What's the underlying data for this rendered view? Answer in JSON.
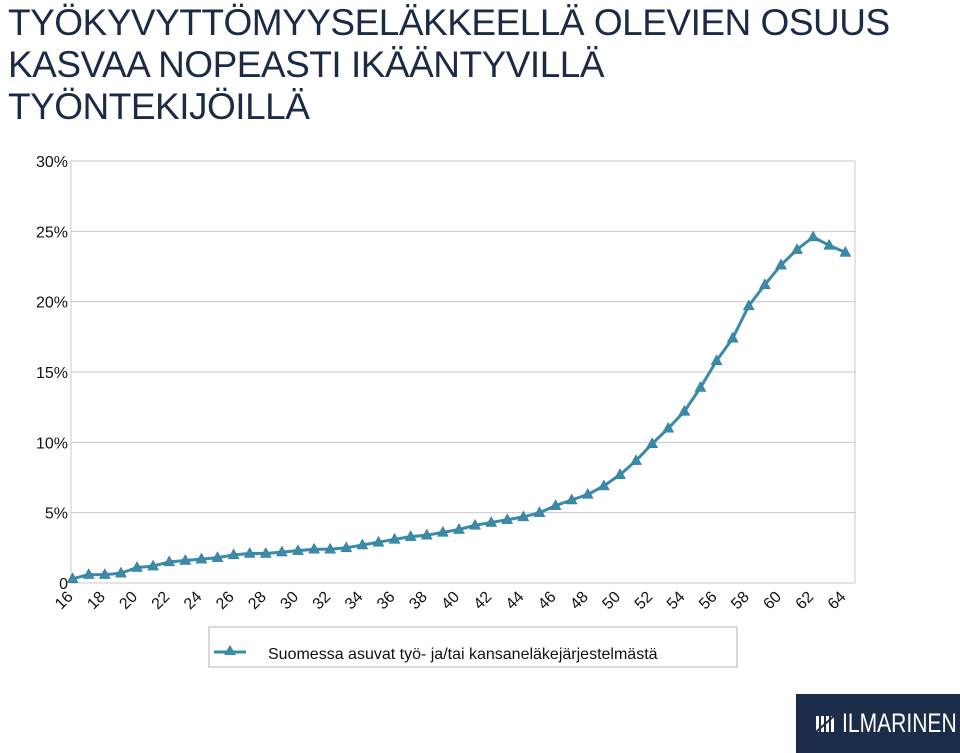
{
  "title_lines": [
    "TYÖKYVYTTÖMYYSELÄKKEELLÄ OLEVIEN OSUUS",
    "KASVAA NOPEASTI IKÄÄNTYVILLÄ",
    "TYÖNTEKIJÖILLÄ"
  ],
  "logo": {
    "text": "ILMARINEN"
  },
  "colors": {
    "series": "#3a8aa8",
    "title": "#1b2b45",
    "grid": "#c8c8c8",
    "logo_bg": "#1c2d4a"
  },
  "chart_data": {
    "type": "line",
    "x": [
      16,
      17,
      18,
      19,
      20,
      21,
      22,
      23,
      24,
      25,
      26,
      27,
      28,
      29,
      30,
      31,
      32,
      33,
      34,
      35,
      36,
      37,
      38,
      39,
      40,
      41,
      42,
      43,
      44,
      45,
      46,
      47,
      48,
      49,
      50,
      51,
      52,
      53,
      54,
      55,
      56,
      57,
      58,
      59,
      60,
      61,
      62,
      63,
      64
    ],
    "ytick_labels": [
      "0",
      "5%",
      "10%",
      "15%",
      "20%",
      "25%",
      "30%"
    ],
    "yticks": [
      0,
      5,
      10,
      15,
      20,
      25,
      30
    ],
    "xtick_labels": [
      "16",
      "18",
      "20",
      "22",
      "24",
      "26",
      "28",
      "30",
      "32",
      "34",
      "36",
      "38",
      "40",
      "42",
      "44",
      "46",
      "48",
      "50",
      "52",
      "54",
      "56",
      "58",
      "60",
      "62",
      "64"
    ],
    "ylim": [
      0,
      30
    ],
    "xlim": [
      15.9,
      64.6
    ],
    "grid": true,
    "legend_position": "bottom",
    "series": [
      {
        "name": "Suomessa asuvat työ- ja/tai kansaneläkejärjestelmästä",
        "color": "#3a8aa8",
        "marker": "triangle",
        "values": [
          0.3,
          0.6,
          0.6,
          0.7,
          1.1,
          1.2,
          1.5,
          1.6,
          1.7,
          1.8,
          2.0,
          2.1,
          2.1,
          2.2,
          2.3,
          2.4,
          2.4,
          2.5,
          2.7,
          2.9,
          3.1,
          3.3,
          3.4,
          3.6,
          3.8,
          4.1,
          4.3,
          4.5,
          4.7,
          5.0,
          5.5,
          5.9,
          6.3,
          6.9,
          7.7,
          8.7,
          9.9,
          11.0,
          12.2,
          13.9,
          15.8,
          17.4,
          19.7,
          21.2,
          22.6,
          23.7,
          24.6,
          24.0,
          23.5
        ]
      }
    ]
  }
}
